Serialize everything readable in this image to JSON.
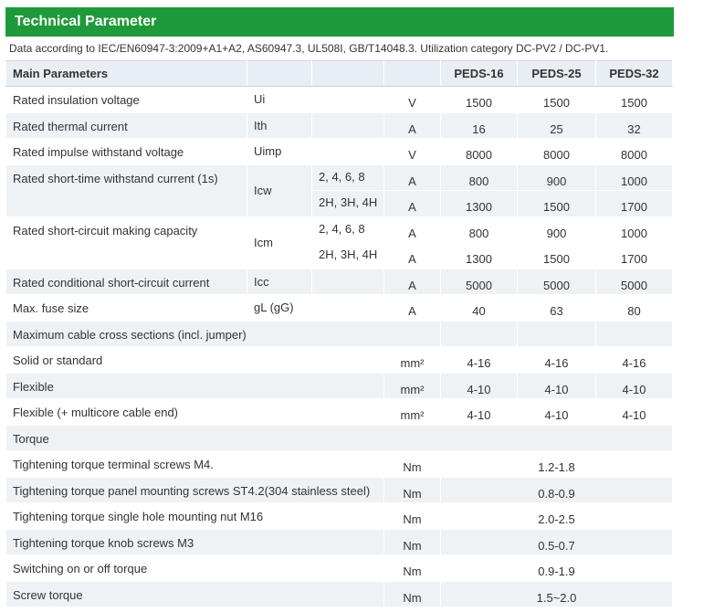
{
  "section_title": "Technical Parameter",
  "note": "Data according to IEC/EN60947-3:2009+A1+A2, AS60947.3, UL508I, GB/T14048.3. Utilization category DC-PV2 / DC-PV1.",
  "header": {
    "main": "Main Parameters",
    "models": [
      "PEDS-16",
      "PEDS-25",
      "PEDS-32"
    ]
  },
  "rows": {
    "insulation": {
      "label": "Rated insulation voltage",
      "symbol": "Ui",
      "unit": "V",
      "values": [
        "1500",
        "1500",
        "1500"
      ]
    },
    "thermal": {
      "label": "Rated thermal current",
      "symbol": "Ith",
      "unit": "A",
      "values": [
        "16",
        "25",
        "32"
      ]
    },
    "impulse": {
      "label": "Rated impulse withstand voltage",
      "symbol": "Uimp",
      "unit": "V",
      "values": [
        "8000",
        "8000",
        "8000"
      ]
    },
    "icw": {
      "label": "Rated short-time withstand current (1s)",
      "symbol": "Icw",
      "sub1": {
        "poles": "2, 4, 6, 8",
        "unit": "A",
        "values": [
          "800",
          "900",
          "1000"
        ]
      },
      "sub2": {
        "poles": "2H, 3H, 4H",
        "unit": "A",
        "values": [
          "1300",
          "1500",
          "1700"
        ]
      }
    },
    "icm": {
      "label": "Rated short-circuit making capacity",
      "symbol": "Icm",
      "sub1": {
        "poles": "2, 4, 6, 8",
        "unit": "A",
        "values": [
          "800",
          "900",
          "1000"
        ]
      },
      "sub2": {
        "poles": "2H, 3H, 4H",
        "unit": "A",
        "values": [
          "1300",
          "1500",
          "1700"
        ]
      }
    },
    "icc": {
      "label": "Rated conditional short-circuit current",
      "symbol": "Icc",
      "unit": "A",
      "values": [
        "5000",
        "5000",
        "5000"
      ]
    },
    "fuse": {
      "label": "Max. fuse size",
      "symbol": "gL (gG)",
      "unit": "A",
      "values": [
        "40",
        "63",
        "80"
      ]
    }
  },
  "cable": {
    "heading": "Maximum cable cross sections (incl. jumper)",
    "items": [
      {
        "label": "Solid or standard",
        "unit": "mm²",
        "values": [
          "4-16",
          "4-16",
          "4-16"
        ]
      },
      {
        "label": "Flexible",
        "unit": "mm²",
        "values": [
          "4-10",
          "4-10",
          "4-10"
        ]
      },
      {
        "label": "Flexible (+ multicore cable end)",
        "unit": "mm²",
        "values": [
          "4-10",
          "4-10",
          "4-10"
        ]
      }
    ]
  },
  "torque": {
    "heading": "Torque",
    "items": [
      {
        "label": "Tightening torque terminal screws M4.",
        "unit": "Nm",
        "value": "1.2-1.8"
      },
      {
        "label": "Tightening torque panel mounting screws ST4.2(304 stainless steel)",
        "unit": "Nm",
        "value": "0.8-0.9"
      },
      {
        "label": "Tightening torque single hole mounting nut M16",
        "unit": "Nm",
        "value": "2.0-2.5"
      },
      {
        "label": "Tightening torque knob screws M3",
        "unit": "Nm",
        "value": "0.5-0.7"
      },
      {
        "label": "Switching on or off torque",
        "unit": "Nm",
        "value": "0.9-1.9"
      },
      {
        "label": "Screw torque",
        "unit": "Nm",
        "value": "1.5~2.0"
      }
    ]
  }
}
